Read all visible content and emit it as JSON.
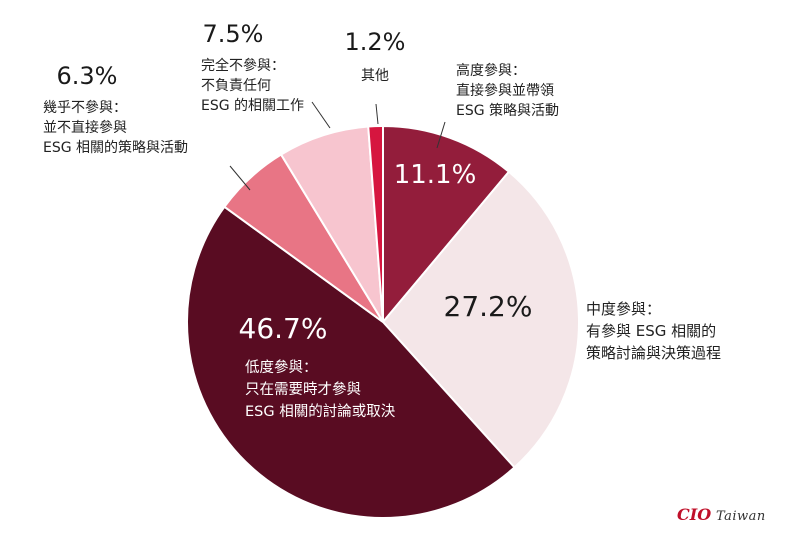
{
  "chart_data": {
    "type": "pie",
    "title": "",
    "start_angle_deg": 0,
    "direction": "clockwise",
    "slices": [
      {
        "label_lines": [
          "高度參與：",
          "直接參與並帶領",
          "ESG 策略與活動"
        ],
        "value": 11.1,
        "display": "11.1%",
        "color": "#931d3b"
      },
      {
        "label_lines": [
          "中度參與：",
          "有參與 ESG 相關的",
          "策略討論與決策過程"
        ],
        "value": 27.2,
        "display": "27.2%",
        "color": "#f4e6e8"
      },
      {
        "label_lines": [
          "低度參與：",
          "只在需要時才參與",
          "ESG 相關的討論或取決"
        ],
        "value": 46.7,
        "display": "46.7%",
        "color": "#590c22"
      },
      {
        "label_lines": [
          "幾乎不參與：",
          "並不直接參與",
          "ESG 相關的策略與活動"
        ],
        "value": 6.3,
        "display": "6.3%",
        "color": "#e87585"
      },
      {
        "label_lines": [
          "完全不參與：",
          "不負責任何",
          "ESG 的相關工作"
        ],
        "value": 7.5,
        "display": "7.5%",
        "color": "#f7c5cf"
      },
      {
        "label_lines": [
          "其他"
        ],
        "value": 1.2,
        "display": "1.2%",
        "color": "#d6163f"
      }
    ]
  },
  "brand": {
    "cio": "CIO",
    "region": "Taiwan"
  }
}
